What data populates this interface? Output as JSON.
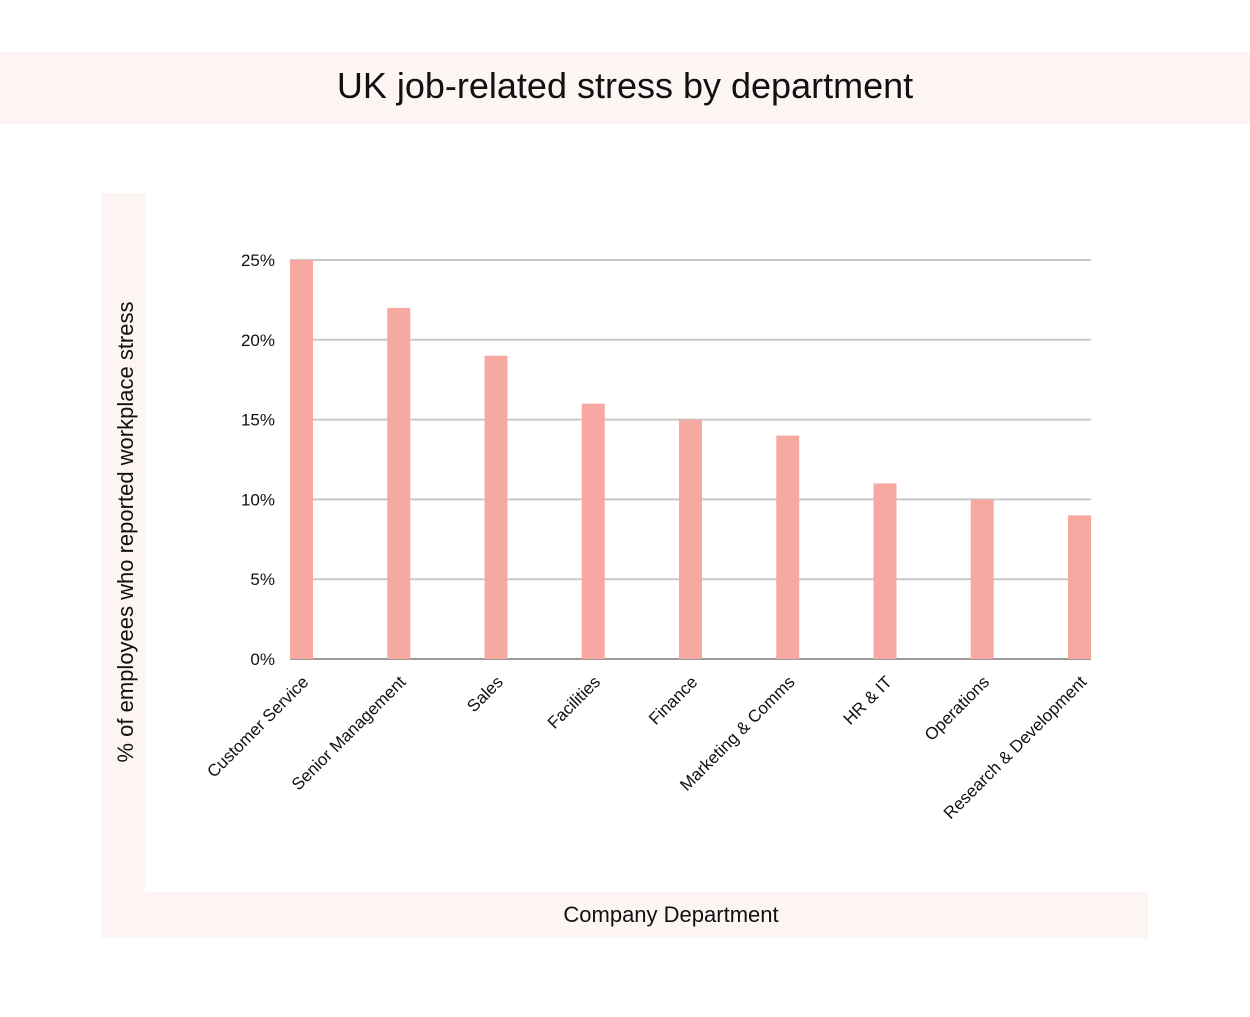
{
  "title": "UK job-related stress by department",
  "chart_data": {
    "type": "bar",
    "title": "UK job-related stress by department",
    "xlabel": "Company Department",
    "ylabel": "% of employees who reported workplace stress",
    "categories": [
      "Customer Service",
      "Senior Management",
      "Sales",
      "Facilities",
      "Finance",
      "Marketing & Comms",
      "HR & IT",
      "Operations",
      "Research & Development"
    ],
    "values": [
      25,
      22,
      19,
      16,
      15,
      14,
      11,
      10,
      9
    ],
    "ylim": [
      0,
      25
    ],
    "yticks": [
      "0%",
      "5%",
      "10%",
      "15%",
      "20%",
      "25%"
    ],
    "grid": true,
    "bar_color": "#f7a8a0",
    "grid_color": "#c8c8c8"
  }
}
